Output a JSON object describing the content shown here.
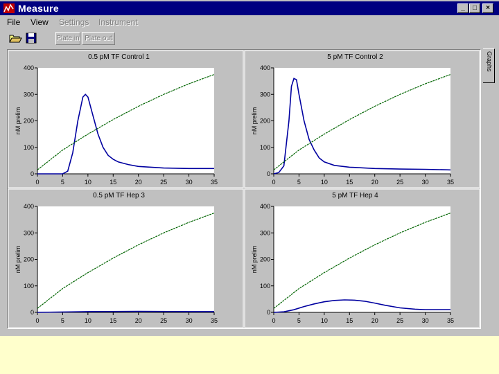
{
  "window": {
    "title": "Measure",
    "minimize_label": "_",
    "maximize_label": "□",
    "close_label": "×"
  },
  "menu": {
    "items": [
      {
        "label": "File",
        "enabled": true
      },
      {
        "label": "View",
        "enabled": true
      },
      {
        "label": "Settings",
        "enabled": false
      },
      {
        "label": "Instrument",
        "enabled": false
      }
    ]
  },
  "toolbar": {
    "open_icon": "folder-open-icon",
    "save_icon": "floppy-disk-icon",
    "plate_in_label": "Plate in",
    "plate_out_label": "Plate out"
  },
  "side_tab": {
    "label": "Graphs"
  },
  "colors": {
    "series_blue": "#0000a0",
    "series_green": "#006400",
    "background": "#ffffcc"
  },
  "chart_data": [
    {
      "type": "line",
      "title": "0.5 pM TF Control 1",
      "ylabel": "nM prelim",
      "xlim": [
        0,
        35
      ],
      "ylim": [
        0,
        400
      ],
      "xticks": [
        0,
        5,
        10,
        15,
        20,
        25,
        30,
        35
      ],
      "yticks": [
        0,
        100,
        200,
        300,
        400
      ],
      "series": [
        {
          "color": "#0000a0",
          "x": [
            0,
            5,
            6,
            7,
            8,
            9,
            9.5,
            10,
            11,
            12,
            13,
            14,
            15,
            16,
            18,
            20,
            25,
            30,
            35
          ],
          "y": [
            0,
            0,
            10,
            80,
            200,
            290,
            300,
            290,
            220,
            150,
            100,
            70,
            55,
            45,
            35,
            28,
            22,
            20,
            20
          ]
        },
        {
          "color": "#006400",
          "x": [
            0,
            5,
            10,
            15,
            20,
            25,
            30,
            35
          ],
          "y": [
            15,
            90,
            150,
            205,
            255,
            300,
            340,
            375
          ]
        }
      ]
    },
    {
      "type": "line",
      "title": "5 pM TF Control 2",
      "ylabel": "nM prelim",
      "xlim": [
        0,
        35
      ],
      "ylim": [
        0,
        400
      ],
      "xticks": [
        0,
        5,
        10,
        15,
        20,
        25,
        30,
        35
      ],
      "yticks": [
        0,
        100,
        200,
        300,
        400
      ],
      "series": [
        {
          "color": "#0000a0",
          "x": [
            0,
            1,
            2,
            3,
            3.5,
            4,
            4.5,
            5,
            6,
            7,
            8,
            9,
            10,
            12,
            15,
            20,
            25,
            30,
            35
          ],
          "y": [
            0,
            5,
            30,
            200,
            330,
            360,
            355,
            300,
            200,
            130,
            90,
            60,
            45,
            32,
            25,
            20,
            18,
            17,
            15
          ]
        },
        {
          "color": "#006400",
          "x": [
            0,
            5,
            10,
            15,
            20,
            25,
            30,
            35
          ],
          "y": [
            15,
            90,
            150,
            205,
            255,
            300,
            340,
            375
          ]
        }
      ]
    },
    {
      "type": "line",
      "title": "0.5 pM TF Hep 3",
      "ylabel": "nM prelim",
      "xlim": [
        0,
        35
      ],
      "ylim": [
        0,
        400
      ],
      "xticks": [
        0,
        5,
        10,
        15,
        20,
        25,
        30,
        35
      ],
      "yticks": [
        0,
        100,
        200,
        300,
        400
      ],
      "series": [
        {
          "color": "#0000a0",
          "x": [
            0,
            10,
            20,
            30,
            35
          ],
          "y": [
            0,
            3,
            4,
            3,
            3
          ]
        },
        {
          "color": "#006400",
          "x": [
            0,
            5,
            10,
            15,
            20,
            25,
            30,
            35
          ],
          "y": [
            15,
            90,
            150,
            205,
            255,
            300,
            340,
            375
          ]
        }
      ]
    },
    {
      "type": "line",
      "title": "5 pM TF Hep 4",
      "ylabel": "nM prelim",
      "xlim": [
        0,
        35
      ],
      "ylim": [
        0,
        400
      ],
      "xticks": [
        0,
        5,
        10,
        15,
        20,
        25,
        30,
        35
      ],
      "yticks": [
        0,
        100,
        200,
        300,
        400
      ],
      "series": [
        {
          "color": "#0000a0",
          "x": [
            0,
            2,
            4,
            6,
            8,
            10,
            12,
            14,
            16,
            18,
            20,
            22,
            25,
            28,
            30,
            35
          ],
          "y": [
            0,
            2,
            10,
            22,
            32,
            40,
            45,
            47,
            46,
            42,
            35,
            27,
            17,
            12,
            10,
            10
          ]
        },
        {
          "color": "#006400",
          "x": [
            0,
            5,
            10,
            15,
            20,
            25,
            30,
            35
          ],
          "y": [
            15,
            90,
            150,
            205,
            255,
            300,
            340,
            375
          ]
        }
      ]
    }
  ]
}
